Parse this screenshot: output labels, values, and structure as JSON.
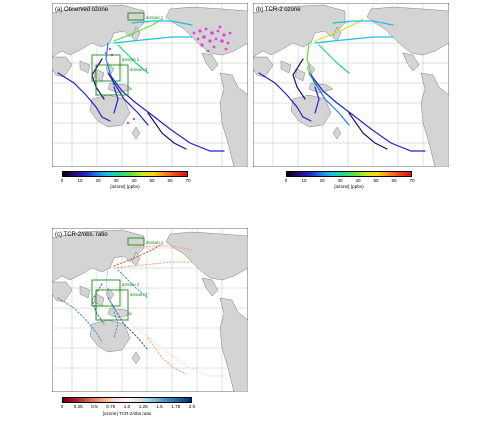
{
  "panels": [
    {
      "id": "a",
      "title": "(a) Observed ozone",
      "domains": [
        "domain 1",
        "domain 2",
        "domain 3"
      ],
      "colorbar": {
        "label": "[ozone] (ppbv)",
        "ticks": [
          "0",
          "10",
          "20",
          "30",
          "40",
          "50",
          "60",
          "70"
        ],
        "colors": [
          "#0a0010",
          "#2b0a6e",
          "#2222c8",
          "#1f7ee8",
          "#1dc0e0",
          "#22d88a",
          "#5fe03c",
          "#c8e81e",
          "#f8d61c",
          "#f88a1c",
          "#f2411a",
          "#e01414"
        ]
      }
    },
    {
      "id": "b",
      "title": "(b) TCR-2 ozone",
      "domains": [],
      "colorbar": {
        "label": "[ozone] (ppbv)",
        "ticks": [
          "0",
          "10",
          "20",
          "30",
          "40",
          "50",
          "60",
          "70"
        ],
        "colors": [
          "#0a0010",
          "#2b0a6e",
          "#2222c8",
          "#1f7ee8",
          "#1dc0e0",
          "#22d88a",
          "#5fe03c",
          "#c8e81e",
          "#f8d61c",
          "#f88a1c",
          "#f2411a",
          "#e01414"
        ]
      }
    },
    {
      "id": "c",
      "title": "(c) TCR-2/obs. ratio",
      "domains": [
        "domain 1",
        "domain 2",
        "domain 3"
      ],
      "colorbar": {
        "label": "[ozone] TCR-2/obs ratio",
        "ticks": [
          "0",
          "0.25",
          "0.5",
          "0.75",
          "1.0",
          "1.25",
          "1.5",
          "1.75",
          "2.0"
        ],
        "colors": [
          "#67001f",
          "#b2182b",
          "#d6604d",
          "#f4a582",
          "#fddbc7",
          "#f7f7f7",
          "#d1e5f0",
          "#92c5de",
          "#4393c3",
          "#2166ac",
          "#053061"
        ]
      }
    }
  ]
}
